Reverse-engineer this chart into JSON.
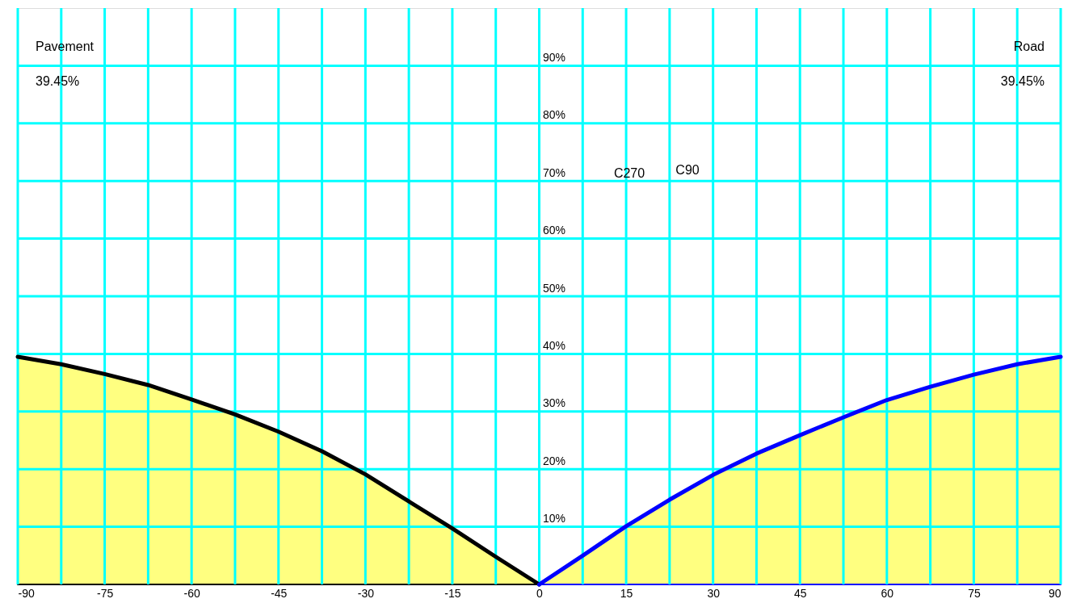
{
  "chart_data": {
    "type": "area",
    "xlim": [
      -90,
      90
    ],
    "ylim": [
      0,
      100
    ],
    "xticks": [
      -90,
      {
        "value": -82.5,
        "label": null
      },
      -75,
      {
        "value": -67.5,
        "label": null
      },
      -60,
      {
        "value": -52.5,
        "label": null
      },
      -45,
      {
        "value": -37.5,
        "label": null
      },
      -30,
      {
        "value": -22.5,
        "label": null
      },
      -15,
      {
        "value": -7.5,
        "label": null
      },
      0,
      {
        "value": 7.5,
        "label": null
      },
      15,
      {
        "value": 22.5,
        "label": null
      },
      30,
      {
        "value": 37.5,
        "label": null
      },
      45,
      {
        "value": 52.5,
        "label": null
      },
      60,
      {
        "value": 67.5,
        "label": null
      },
      75,
      {
        "value": 82.5,
        "label": null
      },
      90
    ],
    "yticks": [
      {
        "value": 10,
        "label": "10%"
      },
      {
        "value": 20,
        "label": "20%"
      },
      {
        "value": 30,
        "label": "30%"
      },
      {
        "value": 40,
        "label": "40%"
      },
      {
        "value": 50,
        "label": "50%"
      },
      {
        "value": 60,
        "label": "60%"
      },
      {
        "value": 70,
        "label": "70%"
      },
      {
        "value": 80,
        "label": "80%"
      },
      {
        "value": 90,
        "label": "90%"
      }
    ],
    "grid": true,
    "series": [
      {
        "color": "#000000",
        "x": [
          -90,
          -82.5,
          -75,
          -67.5,
          -60,
          -52.5,
          -45,
          -37.5,
          -30,
          -22.5,
          -15,
          -7.5,
          0
        ],
        "values": [
          39.5,
          38.2,
          36.5,
          34.6,
          32.1,
          29.5,
          26.5,
          23.1,
          19.1,
          14.4,
          9.7,
          4.8,
          0
        ]
      },
      {
        "color": "#0000ff",
        "x": [
          0,
          7.5,
          15,
          22.5,
          30,
          37.5,
          45,
          52.5,
          60,
          67.5,
          75,
          82.5,
          90
        ],
        "values": [
          0,
          5.0,
          10.1,
          14.7,
          19.0,
          22.7,
          25.9,
          29.0,
          32.0,
          34.3,
          36.4,
          38.2,
          39.5
        ]
      }
    ],
    "annotations": [
      "Pavement",
      "39.45%",
      "Road",
      "39.45%",
      "C270",
      "C90"
    ]
  }
}
